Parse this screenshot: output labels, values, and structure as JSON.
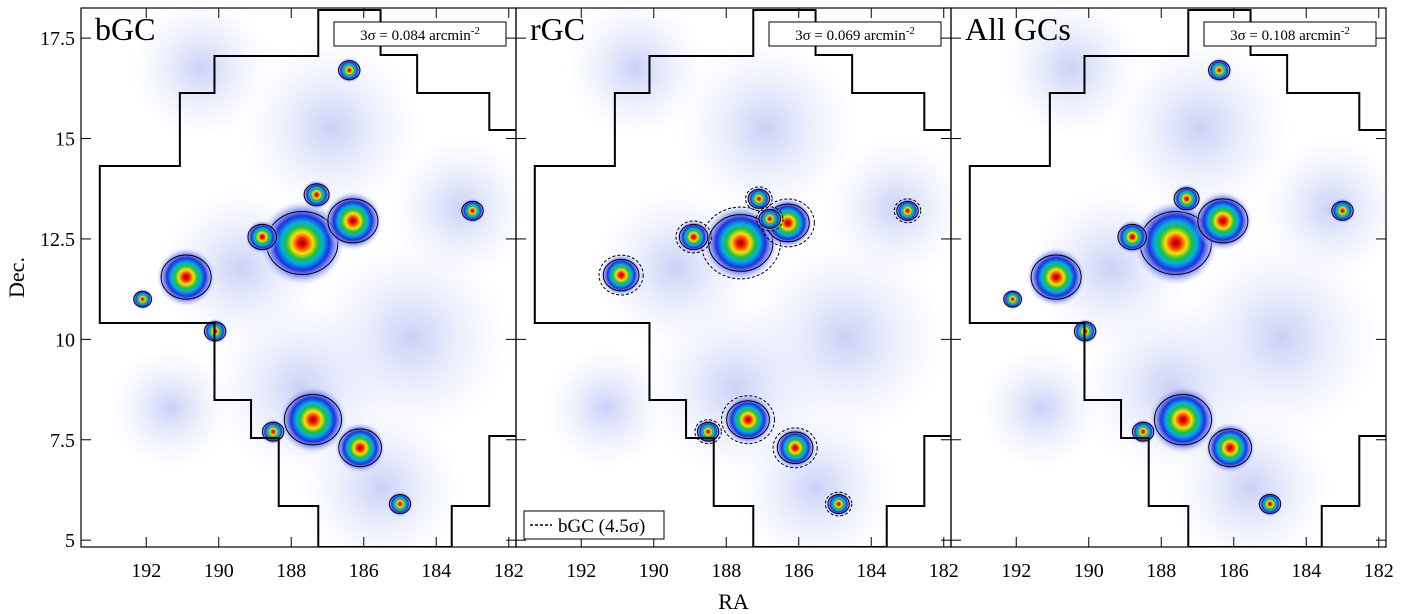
{
  "chart_data": [
    {
      "type": "density-map",
      "title": "bGC",
      "annotation": "3σ = 0.084 arcmin",
      "annotation_exponent": "-2",
      "ylabel": "Dec.",
      "xlim": [
        193.8,
        181.8
      ],
      "ylim": [
        4.83,
        18.25
      ],
      "xticks": [
        192,
        190,
        188,
        186,
        184,
        182
      ],
      "yticks": [
        5,
        7.5,
        10,
        12.5,
        15,
        17.5
      ],
      "peaks": {
        "x": [
          187.7,
          186.3,
          190.9,
          187.4,
          186.1,
          188.8,
          186.4,
          183,
          188.5,
          185,
          190.1,
          192.1,
          187.3
        ],
        "y": [
          12.4,
          12.95,
          11.55,
          8.0,
          7.3,
          12.55,
          16.7,
          13.2,
          7.7,
          5.9,
          10.2,
          11.0,
          13.6
        ],
        "size": [
          1.0,
          0.7,
          0.7,
          0.8,
          0.6,
          0.4,
          0.3,
          0.3,
          0.3,
          0.3,
          0.3,
          0.25,
          0.35
        ]
      }
    },
    {
      "type": "density-map",
      "title": "rGC",
      "annotation": "3σ = 0.069 arcmin",
      "annotation_exponent": "-2",
      "xlabel": "RA",
      "legend": "bGC (4.5σ)",
      "xlim": [
        193.8,
        181.8
      ],
      "ylim": [
        4.83,
        18.25
      ],
      "xticks": [
        192,
        190,
        188,
        186,
        184,
        182
      ],
      "yticks": [
        5,
        7.5,
        10,
        12.5,
        15,
        17.5
      ],
      "peaks": {
        "x": [
          187.6,
          186.3,
          190.9,
          187.4,
          186.1,
          188.9,
          183,
          188.5,
          184.9,
          187.1,
          186.8
        ],
        "y": [
          12.4,
          12.9,
          11.6,
          8.0,
          7.3,
          12.55,
          13.2,
          7.7,
          5.9,
          13.5,
          13.0
        ],
        "size": [
          0.9,
          0.6,
          0.5,
          0.6,
          0.5,
          0.4,
          0.3,
          0.3,
          0.3,
          0.3,
          0.3
        ]
      }
    },
    {
      "type": "density-map",
      "title": "All GCs",
      "annotation": "3σ = 0.108 arcmin",
      "annotation_exponent": "-2",
      "xlim": [
        193.8,
        181.8
      ],
      "ylim": [
        4.83,
        18.25
      ],
      "xticks": [
        192,
        190,
        188,
        186,
        184,
        182
      ],
      "yticks": [
        5,
        7.5,
        10,
        12.5,
        15,
        17.5
      ],
      "peaks": {
        "x": [
          187.6,
          186.3,
          190.9,
          187.4,
          186.1,
          188.8,
          186.4,
          183,
          188.5,
          185,
          190.1,
          192.1,
          187.3
        ],
        "y": [
          12.4,
          12.95,
          11.55,
          8.0,
          7.3,
          12.55,
          16.7,
          13.2,
          7.7,
          5.9,
          10.2,
          11.0,
          13.5
        ],
        "size": [
          1.0,
          0.7,
          0.7,
          0.8,
          0.6,
          0.4,
          0.3,
          0.3,
          0.3,
          0.3,
          0.3,
          0.25,
          0.35
        ]
      }
    }
  ]
}
